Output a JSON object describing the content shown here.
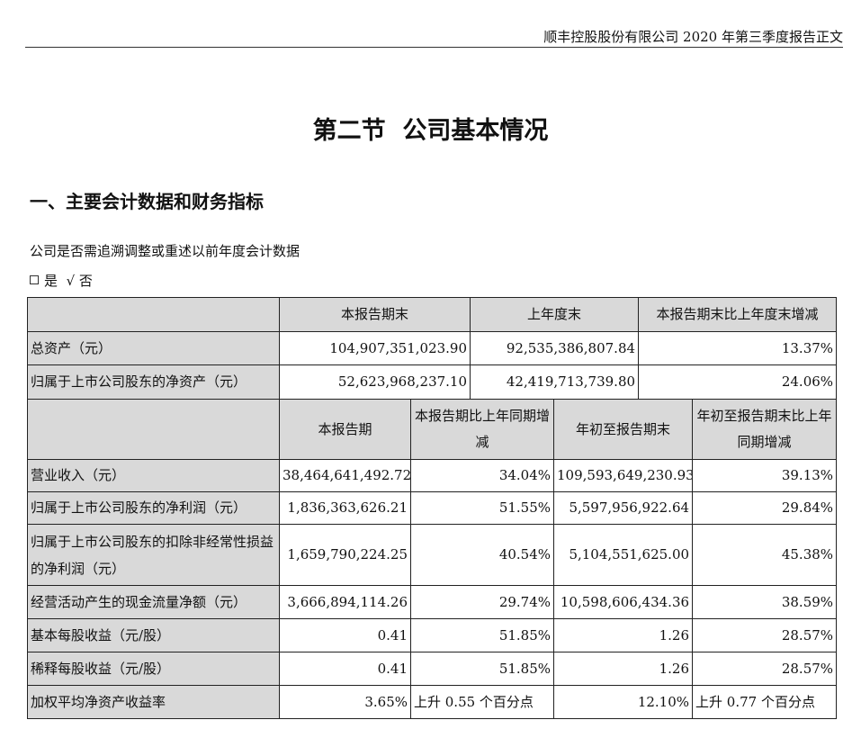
{
  "header": {
    "text": "顺丰控股股份有限公司 2020 年第三季度报告正文"
  },
  "section_title": "第二节  公司基本情况",
  "subsection_title": "一、主要会计数据和财务指标",
  "question": "公司是否需追溯调整或重述以前年度会计数据",
  "answer": {
    "yes": "是",
    "check": "√",
    "no": "否"
  },
  "table1": {
    "headers": [
      "本报告期末",
      "上年度末",
      "本报告期末比上年度末增减"
    ],
    "rows": [
      {
        "label": "总资产（元）",
        "current": "104,907,351,023.90",
        "prior": "92,535,386,807.84",
        "change": "13.37%"
      },
      {
        "label": "归属于上市公司股东的净资产（元）",
        "current": "52,623,968,237.10",
        "prior": "42,419,713,739.80",
        "change": "24.06%"
      }
    ]
  },
  "table2": {
    "headers": [
      "本报告期",
      "本报告期比上年同期增减",
      "年初至报告期末",
      "年初至报告期末比上年同期增减"
    ],
    "rows": [
      {
        "label": "营业收入（元）",
        "period": "38,464,641,492.72",
        "period_change": "34.04%",
        "ytd": "109,593,649,230.93",
        "ytd_change": "39.13%"
      },
      {
        "label": "归属于上市公司股东的净利润（元）",
        "period": "1,836,363,626.21",
        "period_change": "51.55%",
        "ytd": "5,597,956,922.64",
        "ytd_change": "29.84%"
      },
      {
        "label": "归属于上市公司股东的扣除非经常性损益的净利润（元）",
        "period": "1,659,790,224.25",
        "period_change": "40.54%",
        "ytd": "5,104,551,625.00",
        "ytd_change": "45.38%"
      },
      {
        "label": "经营活动产生的现金流量净额（元）",
        "period": "3,666,894,114.26",
        "period_change": "29.74%",
        "ytd": "10,598,606,434.36",
        "ytd_change": "38.59%"
      },
      {
        "label": "基本每股收益（元/股）",
        "period": "0.41",
        "period_change": "51.85%",
        "ytd": "1.26",
        "ytd_change": "28.57%"
      },
      {
        "label": "稀释每股收益（元/股）",
        "period": "0.41",
        "period_change": "51.85%",
        "ytd": "1.26",
        "ytd_change": "28.57%"
      },
      {
        "label": "加权平均净资产收益率",
        "period": "3.65%",
        "period_change": "上升 0.55 个百分点",
        "ytd": "12.10%",
        "ytd_change": "上升 0.77 个百分点"
      }
    ]
  }
}
